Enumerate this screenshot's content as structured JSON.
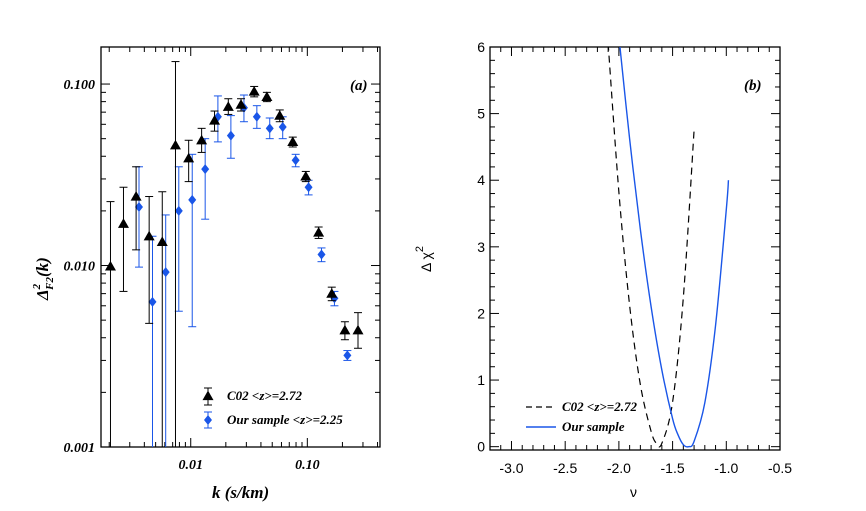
{
  "chart_data": [
    {
      "type": "scatter",
      "panel_label": "(a)",
      "xlabel": "k (s/km)",
      "ylabel": "Δ²F2(k)",
      "ylabel_parts": {
        "delta": "Δ",
        "sup": "2",
        "sub": "F2",
        "tail": "(k)"
      },
      "x_scale": "log",
      "y_scale": "log",
      "xlim": [
        0.0017,
        0.42
      ],
      "ylim": [
        0.001,
        0.16
      ],
      "x_ticks": [
        {
          "value": 0.01,
          "label": "0.01"
        },
        {
          "value": 0.1,
          "label": "0.10"
        }
      ],
      "y_ticks": [
        {
          "value": 0.001,
          "label": "0.001"
        },
        {
          "value": 0.01,
          "label": "0.010"
        },
        {
          "value": 0.1,
          "label": "0.100"
        }
      ],
      "legend_position": "bottom-center",
      "series": [
        {
          "name": "C02 <z>=2.72",
          "marker": "triangle",
          "color": "#000000",
          "points": [
            {
              "x": 0.00205,
              "y": 0.0099,
              "lo": 0.001,
              "hi": 0.0225
            },
            {
              "x": 0.00265,
              "y": 0.017,
              "lo": 0.0072,
              "hi": 0.027
            },
            {
              "x": 0.0034,
              "y": 0.024,
              "lo": 0.0122,
              "hi": 0.035
            },
            {
              "x": 0.0044,
              "y": 0.0145,
              "lo": 0.0048,
              "hi": 0.024
            },
            {
              "x": 0.0057,
              "y": 0.0135,
              "lo": 0.001,
              "hi": 0.0255
            },
            {
              "x": 0.0074,
              "y": 0.046,
              "lo": 0.001,
              "hi": 0.133
            },
            {
              "x": 0.0096,
              "y": 0.039,
              "lo": 0.029,
              "hi": 0.049
            },
            {
              "x": 0.0124,
              "y": 0.049,
              "lo": 0.042,
              "hi": 0.057
            },
            {
              "x": 0.016,
              "y": 0.063,
              "lo": 0.055,
              "hi": 0.071
            },
            {
              "x": 0.021,
              "y": 0.075,
              "lo": 0.068,
              "hi": 0.083
            },
            {
              "x": 0.027,
              "y": 0.077,
              "lo": 0.071,
              "hi": 0.083
            },
            {
              "x": 0.035,
              "y": 0.091,
              "lo": 0.085,
              "hi": 0.097
            },
            {
              "x": 0.045,
              "y": 0.085,
              "lo": 0.08,
              "hi": 0.09
            },
            {
              "x": 0.058,
              "y": 0.067,
              "lo": 0.062,
              "hi": 0.072
            },
            {
              "x": 0.075,
              "y": 0.048,
              "lo": 0.045,
              "hi": 0.051
            },
            {
              "x": 0.097,
              "y": 0.031,
              "lo": 0.029,
              "hi": 0.033
            },
            {
              "x": 0.125,
              "y": 0.0152,
              "lo": 0.0141,
              "hi": 0.0163
            },
            {
              "x": 0.162,
              "y": 0.007,
              "lo": 0.0064,
              "hi": 0.0076
            },
            {
              "x": 0.21,
              "y": 0.0044,
              "lo": 0.0039,
              "hi": 0.0049
            },
            {
              "x": 0.272,
              "y": 0.0044,
              "lo": 0.0035,
              "hi": 0.0055
            }
          ]
        },
        {
          "name": "Our sample <z>=2.25",
          "marker": "diamond",
          "color": "#1a56e8",
          "points": [
            {
              "x": 0.0036,
              "y": 0.021,
              "lo": 0.0098,
              "hi": 0.035
            },
            {
              "x": 0.0047,
              "y": 0.0063,
              "lo": 0.001,
              "hi": 0.0145
            },
            {
              "x": 0.0061,
              "y": 0.0092,
              "lo": 0.001,
              "hi": 0.019
            },
            {
              "x": 0.0079,
              "y": 0.02,
              "lo": 0.0056,
              "hi": 0.035
            },
            {
              "x": 0.0103,
              "y": 0.023,
              "lo": 0.0046,
              "hi": 0.041
            },
            {
              "x": 0.0133,
              "y": 0.034,
              "lo": 0.018,
              "hi": 0.05
            },
            {
              "x": 0.0171,
              "y": 0.066,
              "lo": 0.048,
              "hi": 0.086
            },
            {
              "x": 0.0221,
              "y": 0.052,
              "lo": 0.039,
              "hi": 0.067
            },
            {
              "x": 0.0286,
              "y": 0.074,
              "lo": 0.062,
              "hi": 0.087
            },
            {
              "x": 0.0369,
              "y": 0.066,
              "lo": 0.057,
              "hi": 0.076
            },
            {
              "x": 0.0476,
              "y": 0.057,
              "lo": 0.05,
              "hi": 0.065
            },
            {
              "x": 0.0615,
              "y": 0.058,
              "lo": 0.05,
              "hi": 0.066
            },
            {
              "x": 0.0794,
              "y": 0.038,
              "lo": 0.035,
              "hi": 0.041
            },
            {
              "x": 0.1025,
              "y": 0.027,
              "lo": 0.0245,
              "hi": 0.0295
            },
            {
              "x": 0.1323,
              "y": 0.0115,
              "lo": 0.0105,
              "hi": 0.0125
            },
            {
              "x": 0.1708,
              "y": 0.0066,
              "lo": 0.006,
              "hi": 0.0072
            },
            {
              "x": 0.2205,
              "y": 0.0032,
              "lo": 0.003,
              "hi": 0.0034
            }
          ]
        }
      ]
    },
    {
      "type": "line",
      "panel_label": "(b)",
      "xlabel": "ν",
      "ylabel": "Δ χ²",
      "ylabel_parts": {
        "main": "Δ χ",
        "sup": "2"
      },
      "xlim": [
        -3.2,
        -0.5
      ],
      "ylim": [
        -0.05,
        6
      ],
      "x_ticks": [
        {
          "value": -3.0,
          "label": "-3.0"
        },
        {
          "value": -2.5,
          "label": "-2.5"
        },
        {
          "value": -2.0,
          "label": "-2.0"
        },
        {
          "value": -1.5,
          "label": "-1.5"
        },
        {
          "value": -1.0,
          "label": "-1.0"
        },
        {
          "value": -0.5,
          "label": "-0.5"
        }
      ],
      "y_ticks": [
        {
          "value": 0,
          "label": "0"
        },
        {
          "value": 1,
          "label": "1"
        },
        {
          "value": 2,
          "label": "2"
        },
        {
          "value": 3,
          "label": "3"
        },
        {
          "value": 4,
          "label": "4"
        },
        {
          "value": 5,
          "label": "5"
        },
        {
          "value": 6,
          "label": "6"
        }
      ],
      "legend_position": "bottom-left",
      "series": [
        {
          "name": "C02 <z>=2.72",
          "style": "dashed",
          "color": "#000000",
          "x": [
            -2.1,
            -2.0,
            -1.9,
            -1.8,
            -1.7,
            -1.65,
            -1.6,
            -1.5,
            -1.4,
            -1.3
          ],
          "y": [
            6.05,
            3.82,
            2.12,
            0.93,
            0.23,
            0.05,
            0.05,
            0.67,
            2.24,
            4.75
          ]
        },
        {
          "name": "Our sample",
          "style": "solid",
          "color": "#1a56e8",
          "x": [
            -1.99,
            -1.9,
            -1.8,
            -1.7,
            -1.6,
            -1.5,
            -1.45,
            -1.4,
            -1.35,
            -1.3,
            -1.2,
            -1.1,
            -1.0,
            -0.98
          ],
          "y": [
            6.0,
            4.62,
            3.26,
            2.1,
            1.15,
            0.42,
            0.18,
            0.03,
            0.0,
            0.08,
            0.66,
            1.82,
            3.56,
            4.0
          ]
        }
      ]
    }
  ]
}
